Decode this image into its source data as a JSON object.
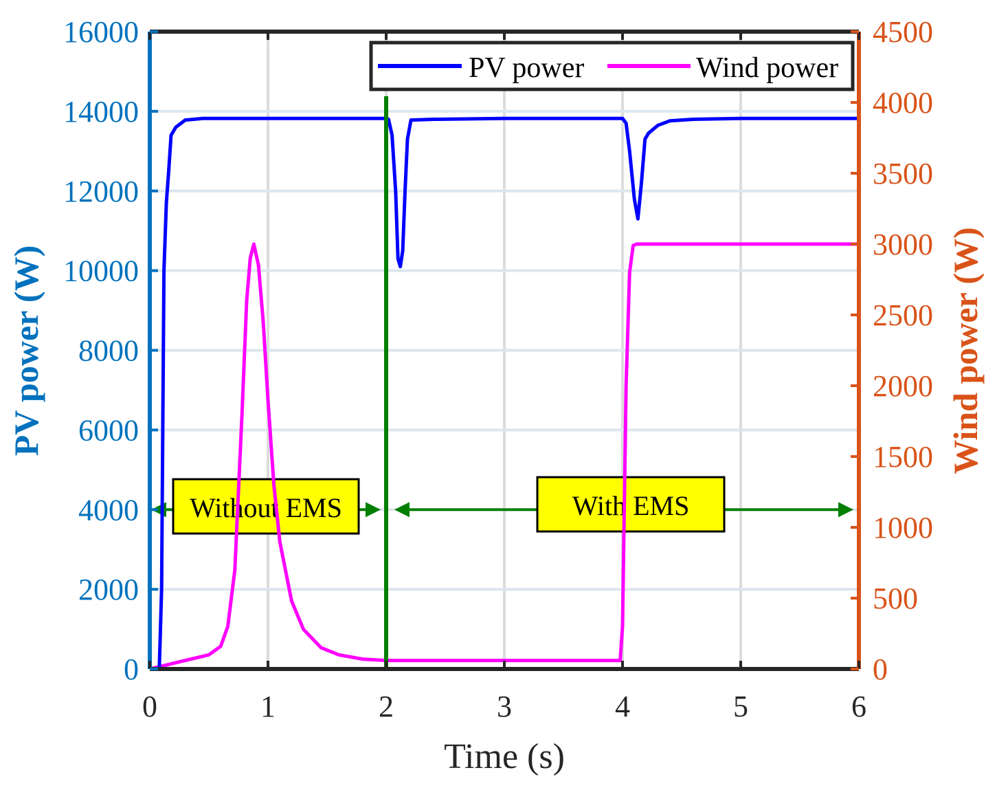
{
  "chart_data": {
    "type": "line",
    "xlabel": "Time (s)",
    "ylabel_left": "PV power (W)",
    "ylabel_right": "Wind power (W)",
    "xlim": [
      0,
      6
    ],
    "ylim_left": [
      0,
      16000
    ],
    "ylim_right": [
      0,
      4500
    ],
    "x_ticks": [
      "0",
      "1",
      "2",
      "3",
      "4",
      "5",
      "6"
    ],
    "y_ticks_left": [
      "0",
      "2000",
      "4000",
      "6000",
      "8000",
      "10000",
      "12000",
      "14000",
      "16000"
    ],
    "y_ticks_right": [
      "0",
      "500",
      "1000",
      "1500",
      "2000",
      "2500",
      "3000",
      "3500",
      "4000",
      "4500"
    ],
    "grid": true,
    "legend_position": "top-right",
    "colors": {
      "left_axis": "#0072BD",
      "right_axis": "#D95319",
      "pv": "#0000FF",
      "wind": "#FF00FF",
      "divider": "#007F00",
      "annotation_fill": "#FFFF00",
      "grid": "#DCDCDC",
      "frame": "#262626"
    },
    "series": [
      {
        "name": "PV power",
        "axis": "left",
        "x": [
          0,
          0.08,
          0.1,
          0.11,
          0.12,
          0.14,
          0.16,
          0.18,
          0.22,
          0.3,
          0.45,
          0.8,
          1.2,
          1.6,
          1.95,
          2.0,
          2.02,
          2.05,
          2.08,
          2.1,
          2.12,
          2.14,
          2.16,
          2.18,
          2.21,
          2.4,
          3.0,
          3.5,
          3.95,
          4.0,
          4.03,
          4.06,
          4.1,
          4.13,
          4.16,
          4.19,
          4.22,
          4.3,
          4.4,
          4.6,
          5.0,
          5.5,
          6.0
        ],
        "y": [
          0,
          0,
          2000,
          6000,
          10000,
          11700,
          12500,
          13400,
          13600,
          13780,
          13820,
          13820,
          13820,
          13820,
          13820,
          13820,
          13800,
          13400,
          12000,
          10300,
          10100,
          10500,
          12000,
          13300,
          13780,
          13800,
          13820,
          13820,
          13820,
          13820,
          13700,
          13000,
          11800,
          11300,
          12200,
          13300,
          13450,
          13650,
          13760,
          13800,
          13820,
          13820,
          13820
        ]
      },
      {
        "name": "Wind power",
        "axis": "right",
        "x": [
          0,
          0.3,
          0.5,
          0.6,
          0.66,
          0.72,
          0.78,
          0.82,
          0.85,
          0.88,
          0.92,
          0.96,
          1.0,
          1.05,
          1.1,
          1.2,
          1.3,
          1.45,
          1.6,
          1.8,
          2.0,
          2.4,
          3.0,
          3.5,
          3.98,
          4.0,
          4.03,
          4.06,
          4.09,
          4.12,
          4.2,
          4.5,
          5.0,
          5.5,
          6.0
        ],
        "y": [
          0,
          60,
          100,
          160,
          300,
          700,
          1800,
          2600,
          2900,
          3000,
          2850,
          2450,
          1900,
          1300,
          900,
          480,
          280,
          150,
          100,
          70,
          60,
          60,
          60,
          60,
          60,
          300,
          2000,
          2800,
          2990,
          3000,
          3000,
          3000,
          3000,
          3000,
          3000
        ]
      }
    ],
    "divider": {
      "x": 2,
      "color_name": "green"
    },
    "annotations": [
      {
        "text": "Without EMS",
        "arrow_from": 0,
        "arrow_to": 2
      },
      {
        "text": "With EMS",
        "arrow_from": 2,
        "arrow_to": 6
      }
    ]
  }
}
